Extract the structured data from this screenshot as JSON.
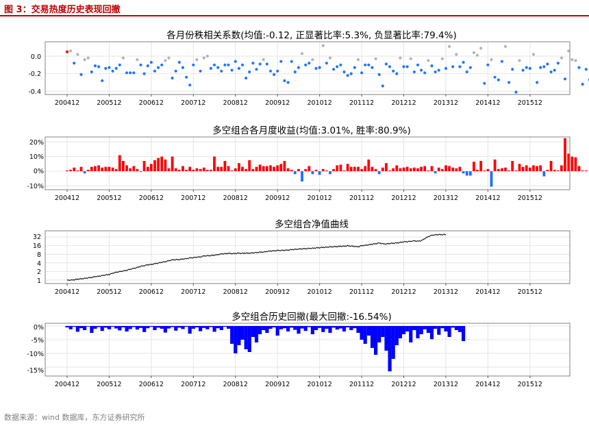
{
  "figure": {
    "title": "图 3：交易热度历史表现回撤",
    "source": "数据来源：wind 数据库，东方证券研究所"
  },
  "colors": {
    "title_red": "#c00000",
    "point_blue": "#1f77ff",
    "point_red": "#ff0000",
    "point_gray": "#b3b3b3",
    "bar_pos": "#ff0000",
    "bar_neg": "#1f6fff",
    "nav_line": "#000000",
    "drawdown": "#0000ff"
  },
  "chart_data": [
    {
      "type": "scatter",
      "title": "各月份秩相关系数(均值:-0.12, 正显著比率:5.3%, 负显著比率:79.4%)",
      "x_ticks": [
        "200412",
        "200512",
        "200612",
        "200712",
        "200812",
        "200912",
        "201012",
        "201112",
        "201212",
        "201312",
        "201412",
        "201512"
      ],
      "y_ticks": [
        "0.0",
        "-0.2",
        "-0.4"
      ],
      "ylim": [
        -0.43,
        0.15
      ],
      "start_month": "200412",
      "grid": true,
      "values": [
        0.05,
        0.06,
        -0.08,
        0.02,
        -0.21,
        -0.04,
        -0.02,
        -0.18,
        -0.11,
        -0.12,
        -0.28,
        -0.14,
        -0.13,
        -0.17,
        -0.14,
        -0.1,
        -0.02,
        -0.19,
        -0.19,
        -0.19,
        -0.04,
        -0.1,
        -0.2,
        -0.11,
        -0.07,
        -0.17,
        -0.13,
        -0.1,
        -0.05,
        -0.02,
        -0.25,
        -0.17,
        -0.07,
        -0.13,
        -0.24,
        -0.33,
        -0.1,
        -0.04,
        -0.17,
        -0.02,
        0.0,
        -0.14,
        -0.1,
        -0.13,
        -0.17,
        -0.1,
        -0.1,
        -0.16,
        -0.06,
        -0.14,
        -0.1,
        -0.25,
        -0.18,
        -0.08,
        -0.15,
        -0.09,
        -0.04,
        -0.09,
        -0.17,
        -0.21,
        -0.17,
        -0.06,
        -0.28,
        -0.3,
        -0.06,
        -0.18,
        -0.13,
        0.03,
        -0.1,
        -0.08,
        -0.04,
        -0.14,
        -0.13,
        0.12,
        -0.08,
        -0.02,
        -0.15,
        -0.12,
        -0.1,
        -0.18,
        -0.22,
        -0.2,
        -0.13,
        -0.04,
        -0.19,
        -0.1,
        -0.1,
        -0.13,
        -0.03,
        -0.21,
        -0.34,
        -0.09,
        -0.12,
        -0.17,
        -0.2,
        -0.02,
        -0.12,
        -0.12,
        -0.03,
        -0.18,
        -0.1,
        -0.16,
        -0.19,
        -0.05,
        -0.11,
        -0.18,
        -0.16,
        -0.03,
        -0.14,
        0.11,
        -0.12,
        0.02,
        -0.12,
        -0.07,
        -0.18,
        -0.13,
        0.04,
        0.01,
        0.09,
        -0.31,
        -0.1,
        -0.04,
        -0.24,
        -0.27,
        -0.06,
        0.11,
        -0.3,
        -0.15,
        -0.41,
        -0.05,
        -0.16,
        -0.13,
        -0.14,
        0.02,
        -0.3,
        -0.13,
        -0.12,
        -0.09,
        -0.18,
        -0.16,
        -0.08,
        -0.02,
        -0.26,
        0.06,
        -0.04,
        -0.05,
        -0.13,
        -0.32,
        -0.15,
        -0.27,
        -0.09,
        -0.14,
        -0.04,
        -0.1
      ],
      "significance": "nnnn",
      "series_sig_note": ""
    },
    {
      "type": "bar",
      "title": "多空组合各月度收益(均值:3.01%, 胜率:80.9%)",
      "x_ticks": [
        "200412",
        "200512",
        "200612",
        "200712",
        "200812",
        "200912",
        "201012",
        "201112",
        "201212",
        "201312",
        "201412",
        "201512"
      ],
      "y_ticks": [
        "20%",
        "10%",
        "0%",
        "-10%"
      ],
      "ylim": [
        -11,
        23
      ],
      "start_month": "200412",
      "grid": true,
      "values": [
        0.5,
        1.0,
        2.5,
        0.5,
        3.0,
        -1.5,
        1.0,
        3.0,
        3.5,
        4.0,
        2.5,
        3.0,
        3.0,
        2.5,
        1.5,
        11.0,
        7.0,
        4.0,
        2.0,
        3.5,
        1.5,
        -0.5,
        7.0,
        3.0,
        5.0,
        7.5,
        9.0,
        10.0,
        8.0,
        2.0,
        10.0,
        2.0,
        1.0,
        3.5,
        1.0,
        3.0,
        1.0,
        2.0,
        1.5,
        2.5,
        1.0,
        1.0,
        10.0,
        3.0,
        3.0,
        7.0,
        3.5,
        0.5,
        2.0,
        5.5,
        3.0,
        1.5,
        7.5,
        1.5,
        3.0,
        4.5,
        3.5,
        3.5,
        4.0,
        3.0,
        4.0,
        5.0,
        7.0,
        2.0,
        1.0,
        -2.0,
        1.5,
        -7.0,
        1.5,
        3.5,
        -2.0,
        1.0,
        -2.5,
        1.5,
        0.5,
        -2.0,
        1.5,
        4.0,
        4.5,
        0.5,
        5.0,
        3.0,
        3.0,
        3.0,
        1.5,
        3.5,
        8.0,
        3.0,
        1.5,
        -2.0,
        2.5,
        5.5,
        0.5,
        2.0,
        4.0,
        2.0,
        2.5,
        3.0,
        2.0,
        2.5,
        2.0,
        3.0,
        3.5,
        0.5,
        3.5,
        -1.5,
        2.5,
        1.5,
        4.0,
        3.5,
        2.5,
        2.0,
        3.0,
        -1.5,
        -3.0,
        -3.0,
        6.5,
        1.0,
        7.0,
        0.5,
        1.5,
        -10.5,
        8.0,
        1.5,
        2.0,
        2.5,
        0.5,
        7.0,
        0.5,
        5.0,
        3.0,
        4.0,
        2.5,
        4.0,
        3.5,
        4.0,
        -3.5,
        1.0,
        7.0,
        1.0,
        0.5,
        4.0,
        22.5,
        12.0,
        10.0,
        9.5,
        3.5,
        0.5,
        0.5
      ]
    },
    {
      "type": "line",
      "title": "多空组合净值曲线",
      "x_ticks": [
        "200412",
        "200512",
        "200612",
        "200712",
        "200812",
        "200912",
        "201012",
        "201112",
        "201212",
        "201312",
        "201412",
        "201512"
      ],
      "y_ticks": [
        "32",
        "16",
        "8",
        "4",
        "2",
        "1"
      ],
      "y_scale": "log2",
      "ylim": [
        0.9,
        50
      ],
      "start_month": "200412",
      "grid": true,
      "values": [
        1,
        1.0,
        1.03,
        1.08,
        1.11,
        1.15,
        1.2,
        1.24,
        1.33,
        1.36,
        1.44,
        1.51,
        1.57,
        1.74,
        1.88,
        1.98,
        2.09,
        2.21,
        2.4,
        2.56,
        2.76,
        3.02,
        3.2,
        3.43,
        3.5,
        3.74,
        3.94,
        4.2,
        4.4,
        4.74,
        5.1,
        5.16,
        5.2,
        5.45,
        5.6,
        5.95,
        6.06,
        6.35,
        6.42,
        6.95,
        7.04,
        7.15,
        7.4,
        7.75,
        8.19,
        8.35,
        8.64,
        8.4,
        8.52,
        8.74,
        8.57,
        8.72,
        8.69,
        8.95,
        9.14,
        9.41,
        9.49,
        10.0,
        10.4,
        10.5,
        10.85,
        10.83,
        11.0,
        11.15,
        11.6,
        11.8,
        12.1,
        12.3,
        12.5,
        12.8,
        12.9,
        13.3,
        13.5,
        13.9,
        14.05,
        14.45,
        14.6,
        14.8,
        15.1,
        15.2,
        15.7,
        15.4,
        15.0,
        14.5,
        16.0,
        16.3,
        17.0,
        18.0,
        18.6,
        19.8,
        18.6,
        18.2,
        19.0,
        19.3,
        19.8,
        20.5,
        21.8,
        21.9,
        22.6,
        23.4,
        22.8,
        23.7,
        28.2,
        33.0,
        36.8,
        38.0,
        38.5,
        38.6,
        38.8
      ]
    },
    {
      "type": "area",
      "title": "多空组合历史回撤(最大回撤:-16.54%)",
      "x_ticks": [
        "200412",
        "200512",
        "200612",
        "200712",
        "200812",
        "200912",
        "201012",
        "201112",
        "201212",
        "201312",
        "201412",
        "201512"
      ],
      "y_ticks": [
        "0%",
        "-5%",
        "-10%",
        "-15%"
      ],
      "ylim": [
        -17,
        0.8
      ],
      "min_drawdown": -16.54,
      "start_month": "200412",
      "grid": true,
      "values": [
        -0.5,
        -1.2,
        -0.3,
        -2.1,
        -0.8,
        -1.5,
        -0.2,
        -2.5,
        -1.0,
        -0.4,
        -1.8,
        -0.6,
        -1.2,
        -0.3,
        -0.9,
        -1.6,
        -0.5,
        -2.0,
        -1.1,
        -0.4,
        -1.3,
        -0.7,
        -2.2,
        -0.8,
        -0.3,
        -1.5,
        -0.6,
        -1.0,
        -2.4,
        -0.9,
        -0.4,
        -1.7,
        -0.6,
        -1.1,
        -0.3,
        -2.8,
        -1.0,
        -0.5,
        -1.9,
        -0.7,
        -1.2,
        -0.4,
        -2.1,
        -0.8,
        -1.5,
        -0.3,
        -1.0,
        -6.5,
        -10.0,
        -7.0,
        -5.0,
        -8.5,
        -9.5,
        -4.0,
        -6.0,
        -3.0,
        -1.5,
        -2.5,
        -1.0,
        -0.5,
        -3.5,
        -1.2,
        -0.8,
        -2.0,
        -0.6,
        -1.4,
        -2.8,
        -0.9,
        -1.8,
        -0.4,
        -3.0,
        -1.5,
        -0.7,
        -2.2,
        -1.0,
        -2.5,
        -0.6,
        -1.3,
        -0.9,
        -2.0,
        -0.5,
        -1.5,
        -0.8,
        -2.5,
        -5.0,
        -6.5,
        -3.5,
        -8.0,
        -10.5,
        -6.0,
        -4.0,
        -9.0,
        -16.54,
        -12.0,
        -7.0,
        -4.5,
        -3.0,
        -2.0,
        -6.0,
        -1.5,
        -4.5,
        -3.0,
        -1.2,
        -2.5,
        -4.8,
        -1.0,
        -3.2,
        -0.8,
        -2.0,
        -4.0,
        -0.6,
        -1.5,
        -2.2,
        -5.5
      ]
    }
  ]
}
